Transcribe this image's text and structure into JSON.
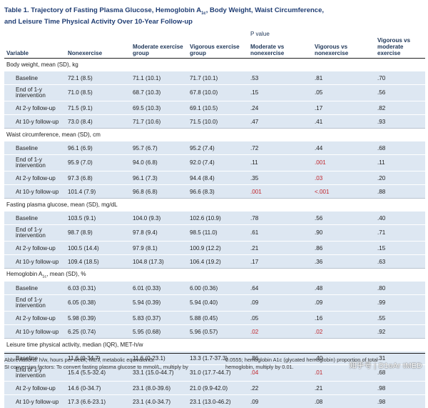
{
  "title": {
    "line1_a": "Table 1. Trajectory of Fasting Plasma Glucose, Hemoglobin A",
    "line1_sub": "1c",
    "line1_b": ", Body Weight, Waist Circumference,",
    "line2": "and Leisure Time Physical Activity Over 10-Year Follow-up"
  },
  "header": {
    "p_value_label": "P value",
    "columns": [
      "Variable",
      "Nonexercise",
      "Moderate exercise group",
      "Vigorous exercise group",
      "Moderate vs nonexercise",
      "Vigorous vs nonexercise",
      "Vigorous vs moderate exercise"
    ]
  },
  "sections": [
    {
      "title": "Body weight, mean (SD), kg",
      "rows": [
        [
          "Baseline",
          "72.1 (8.5)",
          "71.1 (10.1)",
          "71.7 (10.1)",
          ".53",
          ".81",
          ".70"
        ],
        [
          "End of 1-y intervention",
          "71.0 (8.5)",
          "68.7 (10.3)",
          "67.8 (10.0)",
          ".15",
          ".05",
          ".56"
        ],
        [
          "At 2-y follow-up",
          "71.5 (9.1)",
          "69.5 (10.3)",
          "69.1 (10.5)",
          ".24",
          ".17",
          ".82"
        ],
        [
          "At 10-y follow-up",
          "73.0 (8.4)",
          "71.7 (10.6)",
          "71.5 (10.0)",
          ".47",
          ".41",
          ".93"
        ]
      ]
    },
    {
      "title": "Waist circumference, mean (SD), cm",
      "rows": [
        [
          "Baseline",
          "96.1 (6.9)",
          "95.7 (6.7)",
          "95.2 (7.4)",
          ".72",
          ".44",
          ".68"
        ],
        [
          "End of 1-y intervention",
          "95.9 (7.0)",
          "94.0 (6.8)",
          "92.0 (7.4)",
          ".11",
          ".001",
          ".11"
        ],
        [
          "At 2-y follow-up",
          "97.3 (6.8)",
          "96.1 (7.3)",
          "94.4 (8.4)",
          ".35",
          ".03",
          ".20"
        ],
        [
          "At 10-y follow-up",
          "101.4 (7.9)",
          "96.8 (6.8)",
          "96.6 (8.3)",
          ".001",
          "<.001",
          ".88"
        ]
      ]
    },
    {
      "title": "Fasting plasma glucose, mean (SD), mg/dL",
      "rows": [
        [
          "Baseline",
          "103.5 (9.1)",
          "104.0 (9.3)",
          "102.6 (10.9)",
          ".78",
          ".56",
          ".40"
        ],
        [
          "End of 1-y intervention",
          "98.7 (8.9)",
          "97.8 (9.4)",
          "98.5 (11.0)",
          ".61",
          ".90",
          ".71"
        ],
        [
          "At 2-y follow-up",
          "100.5 (14.4)",
          "97.9 (8.1)",
          "100.9 (12.2)",
          ".21",
          ".86",
          ".15"
        ],
        [
          "At 10-y follow-up",
          "109.4 (18.5)",
          "104.8 (17.3)",
          "106.4 (19.2)",
          ".17",
          ".36",
          ".63"
        ]
      ]
    },
    {
      "title_a": "Hemoglobin A",
      "title_sub": "1c",
      "title_b": ", mean (SD), %",
      "rows": [
        [
          "Baseline",
          "6.03 (0.31)",
          "6.01 (0.33)",
          "6.00 (0.36)",
          ".64",
          ".48",
          ".80"
        ],
        [
          "End of 1-y intervention",
          "6.05 (0.38)",
          "5.94 (0.39)",
          "5.94 (0.40)",
          ".09",
          ".09",
          ".99"
        ],
        [
          "At 2-y follow-up",
          "5.98 (0.39)",
          "5.83 (0.37)",
          "5.88 (0.45)",
          ".05",
          ".16",
          ".55"
        ],
        [
          "At 10-y follow-up",
          "6.25 (0.74)",
          "5.95 (0.68)",
          "5.96 (0.57)",
          ".02",
          ".02",
          ".92"
        ]
      ]
    },
    {
      "title": "Leisure time physical activity, median (IQR), MET-h/w",
      "rows": [
        [
          "Baseline",
          "11.6 (0-34.7)",
          "11.6 (0-23.1)",
          "13.3 (1.7-37.3)",
          ".86",
          ".40",
          ".31"
        ],
        [
          "End of 1-y intervention",
          "15.4 (5.5-32.4)",
          "33.1 (15.0-44.7)",
          "31.0 (17.7-44.7)",
          ".04",
          ".01",
          ".68"
        ],
        [
          "At 2-y follow-up",
          "14.6 (0-34.7)",
          "23.1 (8.0-39.6)",
          "21.0 (9.9-42.0)",
          ".22",
          ".21",
          ".98"
        ],
        [
          "At 10-y follow-up",
          "17.3 (6.6-23.1)",
          "23.1 (4.0-34.7)",
          "23.1 (13.0-46.2)",
          ".09",
          ".08",
          ".98"
        ]
      ]
    }
  ],
  "significant_color": "#c0262d",
  "footnotes": {
    "left_line1": "Abbreviations: h/w, hours per week; MET, metabolic equivalents.",
    "left_line2": "SI conversion factors: To convert fasting plasma glucose to mmol/L, multiply by",
    "right_line1": "0.0555; hemoglobin A1c (glycated hemoglobin) proportion of total",
    "right_line2": "hemoglobin, multiply by 0.01."
  },
  "watermark": "知乎号 | D1oAr tMED"
}
